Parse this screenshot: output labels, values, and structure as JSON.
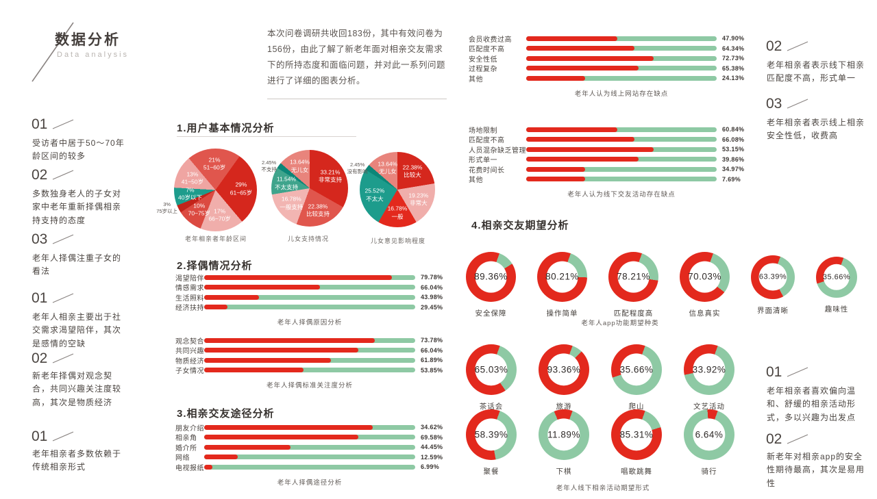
{
  "header": {
    "title": "数据分析",
    "subtitle": "Data  analysis"
  },
  "intro": {
    "text": "本次问卷调研共收回183份，其中有效问卷为156份，由此了解了新老年面对相亲交友需求下的所持态度和面临问题，并对此一系列问题进行了详细的图表分析。"
  },
  "notes_left": [
    {
      "num": "01",
      "text": "受访者中居于50～70年龄区间的较多"
    },
    {
      "num": "02",
      "text": "多数独身老人的子女对家中老年重新择偶相亲持支持的态度"
    },
    {
      "num": "03",
      "text": "老年人择偶注重子女的看法"
    },
    {
      "num": "01",
      "text": "老年人相亲主要出于社交需求渴望陪伴，其次是感情的空缺"
    },
    {
      "num": "02",
      "text": "新老年择偶对观念契合，共同兴趣关注度较高，其次是物质经济"
    },
    {
      "num": "01",
      "text": "老年相亲者多数依赖于传统相亲形式"
    }
  ],
  "notes_right": [
    {
      "num": "02",
      "text": "老年相亲者表示线下相亲匹配度不高，形式单一"
    },
    {
      "num": "03",
      "text": "老年相亲者表示线上相亲安全性低，收费高"
    },
    {
      "num": "01",
      "text": "老年相亲者喜欢偏向温和、舒缓的相亲活动形式，多以兴趣为出发点"
    },
    {
      "num": "02",
      "text": "新老年对相亲app的安全性期待最高，其次是易用性"
    }
  ],
  "section_titles": {
    "s1": "1.用户基本情况分析",
    "s2": "2.择偶情况分析",
    "s3": "3.相亲交友途径分析",
    "s4": "4.相亲交友期望分析"
  },
  "palette": {
    "red_bright": "#e3291d",
    "red_dark": "#d5271d",
    "red_mid": "#e0564d",
    "salmon": "#e8847c",
    "pink_light": "#f0aeab",
    "teal": "#1d9c8c",
    "teal_mid": "#3fa48c",
    "teal_dark": "#0c8678",
    "green_bar": "#8ec9a4"
  },
  "chart_data": [
    {
      "id": "pie-age",
      "type": "pie",
      "title": "老年相亲者年龄区间",
      "start_deg": -40,
      "slices": [
        {
          "label": "51~60岁",
          "pct": "21%",
          "value": 21,
          "color": "#e0564d"
        },
        {
          "label": "61~65岁",
          "pct": "29%",
          "value": 29,
          "color": "#d5271d"
        },
        {
          "label": "66~70岁",
          "pct": "17%",
          "value": 17,
          "color": "#f0aeab"
        },
        {
          "label": "70~75岁",
          "pct": "10%",
          "value": 10,
          "color": "#db4a41"
        },
        {
          "label": "75岁以上",
          "pct": "3%",
          "value": 3,
          "color": "#c2231a"
        },
        {
          "label": "40岁以下",
          "pct": "7%",
          "value": 7,
          "color": "#1d9c8c"
        },
        {
          "label": "41~50岁",
          "pct": "13%",
          "value": 13,
          "color": "#efa5a2"
        }
      ]
    },
    {
      "id": "pie-support",
      "type": "pie",
      "title": "儿女支持情况",
      "start_deg": 0,
      "slices": [
        {
          "label": "非常支持",
          "pct": "33.21%",
          "value": 33.21,
          "color": "#d5271d"
        },
        {
          "label": "比较支持",
          "pct": "22.38%",
          "value": 22.38,
          "color": "#e0564d"
        },
        {
          "label": "一般支持",
          "pct": "16.78%",
          "value": 16.78,
          "color": "#f2b5b2"
        },
        {
          "label": "不太支持",
          "pct": "11.54%",
          "value": 11.54,
          "color": "#3fa48c"
        },
        {
          "label": "不支持",
          "pct": "2.45%",
          "value": 2.45,
          "color": "#0c8678"
        },
        {
          "label": "无儿女",
          "pct": "13.64%",
          "value": 13.64,
          "color": "#e8847c"
        }
      ]
    },
    {
      "id": "pie-influence",
      "type": "pie",
      "title": "儿女意见影响程度",
      "start_deg": 0,
      "slices": [
        {
          "label": "比较大",
          "pct": "22.38%",
          "value": 22.38,
          "color": "#d5271d"
        },
        {
          "label": "非常大",
          "pct": "19.23%",
          "value": 19.23,
          "color": "#f0aeab"
        },
        {
          "label": "一般",
          "pct": "16.78%",
          "value": 16.78,
          "color": "#e3291d"
        },
        {
          "label": "不太大",
          "pct": "25.52%",
          "value": 25.52,
          "color": "#1d9c8c"
        },
        {
          "label": "没有影响",
          "pct": "2.45%",
          "value": 2.45,
          "color": "#0c8678"
        },
        {
          "label": "无儿女",
          "pct": "13.64%",
          "value": 13.64,
          "color": "#e8847c"
        }
      ]
    },
    {
      "id": "bars-reason",
      "type": "bar",
      "title": "老年人择偶原因分析",
      "rows": [
        {
          "label": "渴望陪伴",
          "value": "79.78%",
          "fill": 89
        },
        {
          "label": "情感需求",
          "value": "66.04%",
          "fill": 55
        },
        {
          "label": "生活照料",
          "value": "43.98%",
          "fill": 26
        },
        {
          "label": "经济扶持",
          "value": "29.45%",
          "fill": 11
        }
      ]
    },
    {
      "id": "bars-standard",
      "type": "bar",
      "title": "老年人择偶标准关注度分析",
      "rows": [
        {
          "label": "观念契合",
          "value": "73.78%",
          "fill": 81
        },
        {
          "label": "共同兴趣",
          "value": "66.04%",
          "fill": 73
        },
        {
          "label": "物质经济",
          "value": "61.89%",
          "fill": 60
        },
        {
          "label": "子女情况",
          "value": "53.85%",
          "fill": 47
        }
      ]
    },
    {
      "id": "bars-channel",
      "type": "bar",
      "title": "老年人择偶途径分析",
      "rows": [
        {
          "label": "朋友介绍",
          "value": "34.62%",
          "fill": 80
        },
        {
          "label": "相亲角",
          "value": "69.58%",
          "fill": 73
        },
        {
          "label": "婚介所",
          "value": "44.45%",
          "fill": 41
        },
        {
          "label": "网络",
          "value": "12.59%",
          "fill": 16
        },
        {
          "label": "电视报纸",
          "value": "6.99%",
          "fill": 4
        }
      ]
    },
    {
      "id": "bars-online",
      "type": "bar",
      "title": "老年人认为线上网站存在缺点",
      "rows": [
        {
          "label": "会员收费过高",
          "value": "47.90%",
          "fill": 48
        },
        {
          "label": "匹配度不高",
          "value": "64.34%",
          "fill": 57
        },
        {
          "label": "安全性低",
          "value": "72.73%",
          "fill": 67
        },
        {
          "label": "过程复杂",
          "value": "65.38%",
          "fill": 59
        },
        {
          "label": "其他",
          "value": "24.13%",
          "fill": 31
        }
      ]
    },
    {
      "id": "bars-offline",
      "type": "bar",
      "title": "老年人认为线下交友活动存在缺点",
      "rows": [
        {
          "label": "场地限制",
          "value": "60.84%",
          "fill": 48
        },
        {
          "label": "匹配度不高",
          "value": "66.08%",
          "fill": 57
        },
        {
          "label": "人员混杂缺乏管理",
          "value": "53.15%",
          "fill": 67
        },
        {
          "label": "形式单一",
          "value": "39.86%",
          "fill": 59
        },
        {
          "label": "花费时间长",
          "value": "34.97%",
          "fill": 31
        },
        {
          "label": "其他",
          "value": "7.69%",
          "fill": 31
        }
      ]
    },
    {
      "id": "donuts-app",
      "type": "donut-row",
      "caption": "老年人app功能期望种类",
      "items": [
        {
          "label": "安全保障",
          "pct": "89.36%",
          "value": 89.36,
          "d": 73
        },
        {
          "label": "操作简单",
          "pct": "80.21%",
          "value": 80.21,
          "d": 73
        },
        {
          "label": "匹配程度高",
          "pct": "78.21%",
          "value": 78.21,
          "d": 73
        },
        {
          "label": "信息真实",
          "pct": "70.03%",
          "value": 70.03,
          "d": 73
        },
        {
          "label": "界面清晰",
          "pct": "63.39%",
          "value": 63.39,
          "d": 64
        },
        {
          "label": "趣味性",
          "pct": "35.66%",
          "value": 35.66,
          "d": 60
        }
      ]
    },
    {
      "id": "donuts-activity-1",
      "type": "donut-row",
      "caption": "",
      "items": [
        {
          "label": "茶话会",
          "pct": "65.03%",
          "value": 65.03,
          "d": 74
        },
        {
          "label": "旅游",
          "pct": "93.36%",
          "value": 93.36,
          "d": 74
        },
        {
          "label": "爬山",
          "pct": "35.66%",
          "value": 35.66,
          "d": 74
        },
        {
          "label": "文艺活动",
          "pct": "33.92%",
          "value": 33.92,
          "d": 74
        }
      ]
    },
    {
      "id": "donuts-activity-2",
      "type": "donut-row",
      "caption": "老年人线下相亲活动期望形式",
      "items": [
        {
          "label": "聚餐",
          "pct": "58.39%",
          "value": 58.39,
          "d": 74
        },
        {
          "label": "下棋",
          "pct": "11.89%",
          "value": 11.89,
          "d": 74
        },
        {
          "label": "唱歌跳舞",
          "pct": "85.31%",
          "value": 85.31,
          "d": 74
        },
        {
          "label": "骑行",
          "pct": "6.64%",
          "value": 6.64,
          "d": 74
        }
      ]
    }
  ]
}
